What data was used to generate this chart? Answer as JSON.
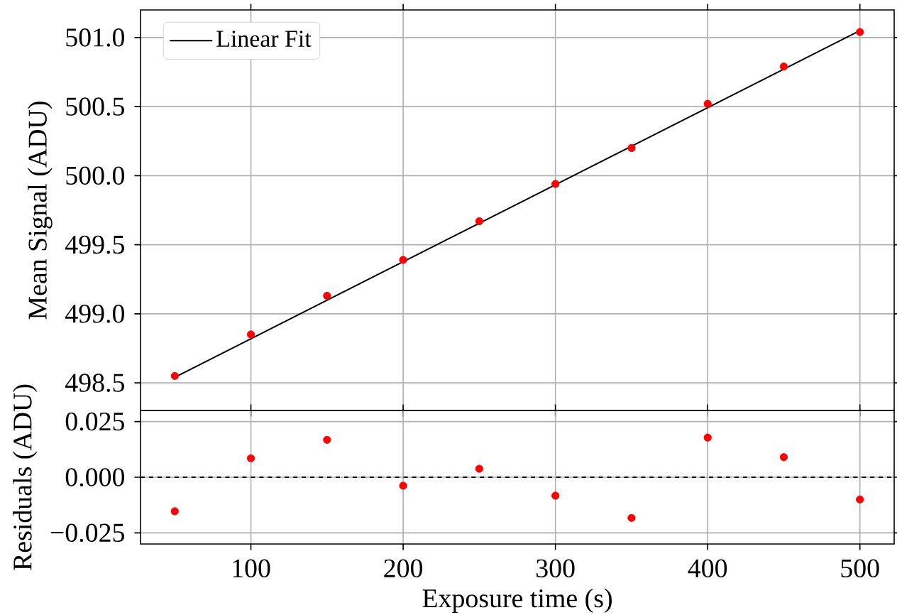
{
  "chart_data": [
    {
      "type": "scatter",
      "ylabel": "Mean Signal (ADU)",
      "xlim": [
        27.5,
        522.5
      ],
      "ylim": [
        498.3,
        501.2
      ],
      "xticks": [
        100,
        200,
        300,
        400,
        500
      ],
      "yticks": [
        498.5,
        {
          "value": 499,
          "label": "499.0"
        },
        499.5,
        {
          "value": 500,
          "label": "500.0"
        },
        500.5,
        {
          "value": 501,
          "label": "501.0"
        }
      ],
      "tick_labels": "y",
      "grid": true,
      "legend": "top left",
      "series": [
        {
          "type": "scatter",
          "marker": "circle",
          "color": "#ff0000",
          "x": [
            50,
            100,
            150,
            200,
            250,
            300,
            350,
            400,
            450,
            500
          ],
          "values": [
            498.55,
            498.85,
            499.13,
            499.39,
            499.67,
            499.94,
            500.2,
            500.52,
            500.79,
            501.04
          ]
        },
        {
          "type": "line",
          "name": "Linear Fit",
          "color": "#000000",
          "x": [
            50,
            500
          ],
          "values": [
            498.54,
            501.05
          ]
        }
      ]
    },
    {
      "type": "scatter",
      "xlabel": "Exposure time (s)",
      "ylabel": "Residuals (ADU)",
      "xlim": [
        27.5,
        522.5
      ],
      "ylim": [
        -0.03,
        0.03
      ],
      "xticks": [
        100,
        200,
        300,
        400,
        500
      ],
      "yticks": [
        {
          "value": -0.025,
          "label": "−0.025"
        },
        {
          "value": 0,
          "label": "0.000"
        },
        0.025
      ],
      "grid": true,
      "ref_lines": [
        {
          "axis": "y",
          "value": 0,
          "color": "#000000",
          "line_style": "dashed"
        }
      ],
      "series": [
        {
          "type": "scatter",
          "marker": "circle",
          "color": "#ff0000",
          "x": [
            50,
            100,
            150,
            200,
            250,
            300,
            350,
            400,
            450,
            500
          ],
          "values": [
            -0.0153,
            0.0085,
            0.0168,
            -0.0038,
            0.0038,
            -0.0083,
            -0.0183,
            0.0178,
            0.009,
            -0.01
          ]
        }
      ]
    }
  ]
}
